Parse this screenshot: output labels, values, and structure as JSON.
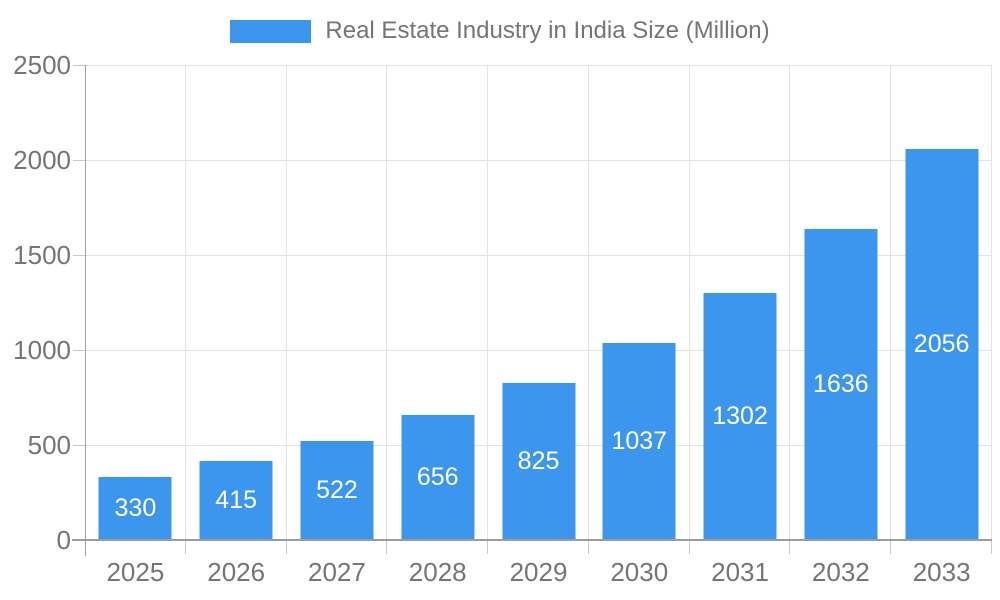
{
  "chart_data": {
    "type": "bar",
    "title": "Real Estate Industry in India Size (Million)",
    "legend": [
      "Real Estate Industry in India Size (Million)"
    ],
    "legend_position": "top",
    "categories": [
      "2025",
      "2026",
      "2027",
      "2028",
      "2029",
      "2030",
      "2031",
      "2032",
      "2033"
    ],
    "values": [
      330,
      415,
      522,
      656,
      825,
      1037,
      1302,
      1636,
      2056
    ],
    "xlabel": "",
    "ylabel": "",
    "ylim": [
      0,
      2500
    ],
    "y_ticks": [
      0,
      500,
      1000,
      1500,
      2000,
      2500
    ],
    "grid": true,
    "bar_color": "#3d96ee",
    "bar_label_color": "#ffffff",
    "axis_text_color": "#757575",
    "gridline_color": "#e3e3e3",
    "axis_line_color": "#9c9c9c",
    "background_color": "#ffffff"
  }
}
